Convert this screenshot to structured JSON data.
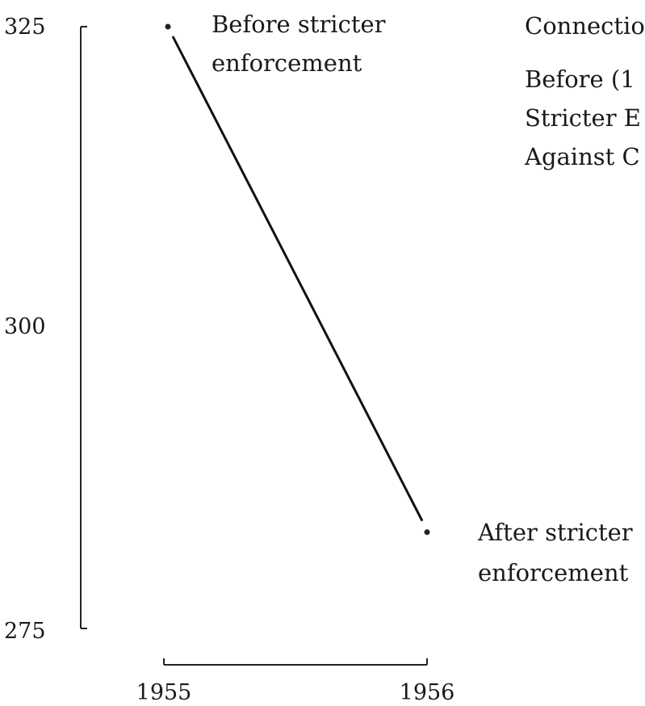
{
  "chart_data": {
    "type": "line",
    "title_lines": [
      "Connectio",
      "Before (1",
      "Stricter E",
      "Against C"
    ],
    "x": [
      "1955",
      "1956"
    ],
    "series": [
      {
        "values": [
          325,
          283
        ]
      }
    ],
    "ylim": [
      275,
      325
    ],
    "yticks": [
      "325",
      "300",
      "275"
    ],
    "xticks": [
      "1955",
      "1956"
    ],
    "point_labels": [
      [
        "Before stricter",
        "enforcement"
      ],
      [
        "After stricter",
        "enforcement"
      ]
    ],
    "grid": false,
    "line_color": "#111111"
  }
}
